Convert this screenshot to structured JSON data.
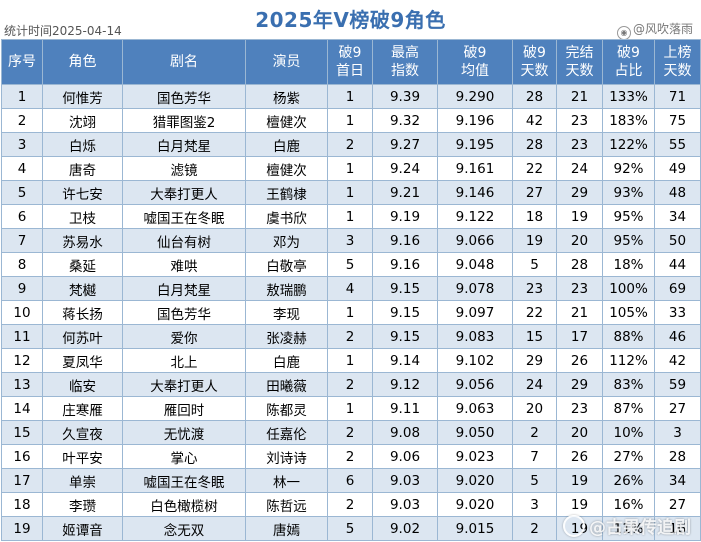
{
  "title": "2025年V榜破9角色",
  "stat_date": "统计时间2025-04-14",
  "source": "@风吹落雨",
  "source_icon": "weibo-icon",
  "watermark": "@古果传追剧",
  "headers": [
    "序号",
    "角色",
    "剧名",
    "演员",
    "破9\n首日",
    "最高\n指数",
    "破9\n均值",
    "破9\n天数",
    "完结\n天数",
    "破9\n占比",
    "上榜\n天数"
  ],
  "rows": [
    [
      "1",
      "何惟芳",
      "国色芳华",
      "杨紫",
      "1",
      "9.39",
      "9.290",
      "28",
      "21",
      "133%",
      "71"
    ],
    [
      "2",
      "沈翊",
      "猎罪图鉴2",
      "檀健次",
      "1",
      "9.32",
      "9.196",
      "42",
      "23",
      "183%",
      "75"
    ],
    [
      "3",
      "白烁",
      "白月梵星",
      "白鹿",
      "2",
      "9.27",
      "9.195",
      "28",
      "23",
      "122%",
      "55"
    ],
    [
      "4",
      "唐奇",
      "滤镜",
      "檀健次",
      "1",
      "9.24",
      "9.161",
      "22",
      "24",
      "92%",
      "49"
    ],
    [
      "5",
      "许七安",
      "大奉打更人",
      "王鹤棣",
      "1",
      "9.21",
      "9.146",
      "27",
      "29",
      "93%",
      "48"
    ],
    [
      "6",
      "卫枝",
      "嘘国王在冬眠",
      "虞书欣",
      "1",
      "9.19",
      "9.122",
      "18",
      "19",
      "95%",
      "34"
    ],
    [
      "7",
      "苏易水",
      "仙台有树",
      "邓为",
      "3",
      "9.16",
      "9.066",
      "19",
      "20",
      "95%",
      "50"
    ],
    [
      "8",
      "桑延",
      "难哄",
      "白敬亭",
      "5",
      "9.16",
      "9.048",
      "5",
      "28",
      "18%",
      "44"
    ],
    [
      "9",
      "梵樾",
      "白月梵星",
      "敖瑞鹏",
      "4",
      "9.15",
      "9.078",
      "23",
      "23",
      "100%",
      "69"
    ],
    [
      "10",
      "蒋长扬",
      "国色芳华",
      "李现",
      "1",
      "9.15",
      "9.097",
      "22",
      "21",
      "105%",
      "33"
    ],
    [
      "11",
      "何苏叶",
      "爱你",
      "张凌赫",
      "2",
      "9.15",
      "9.083",
      "15",
      "17",
      "88%",
      "46"
    ],
    [
      "12",
      "夏凤华",
      "北上",
      "白鹿",
      "1",
      "9.14",
      "9.102",
      "29",
      "26",
      "112%",
      "42"
    ],
    [
      "13",
      "临安",
      "大奉打更人",
      "田曦薇",
      "2",
      "9.12",
      "9.056",
      "24",
      "29",
      "83%",
      "59"
    ],
    [
      "14",
      "庄寒雁",
      "雁回时",
      "陈都灵",
      "1",
      "9.11",
      "9.063",
      "20",
      "23",
      "87%",
      "27"
    ],
    [
      "15",
      "久宣夜",
      "无忧渡",
      "任嘉伦",
      "2",
      "9.08",
      "9.050",
      "2",
      "20",
      "10%",
      "3"
    ],
    [
      "16",
      "叶平安",
      "掌心",
      "刘诗诗",
      "2",
      "9.06",
      "9.023",
      "7",
      "26",
      "27%",
      "28"
    ],
    [
      "17",
      "单崇",
      "嘘国王在冬眠",
      "林一",
      "6",
      "9.03",
      "9.020",
      "5",
      "19",
      "26%",
      "34"
    ],
    [
      "18",
      "李瓒",
      "白色橄榄树",
      "陈哲远",
      "2",
      "9.03",
      "9.020",
      "3",
      "19",
      "16%",
      "27"
    ],
    [
      "19",
      "姬谭音",
      "念无双",
      "唐嫣",
      "5",
      "9.02",
      "9.015",
      "2",
      "19",
      "11%",
      "16"
    ]
  ]
}
